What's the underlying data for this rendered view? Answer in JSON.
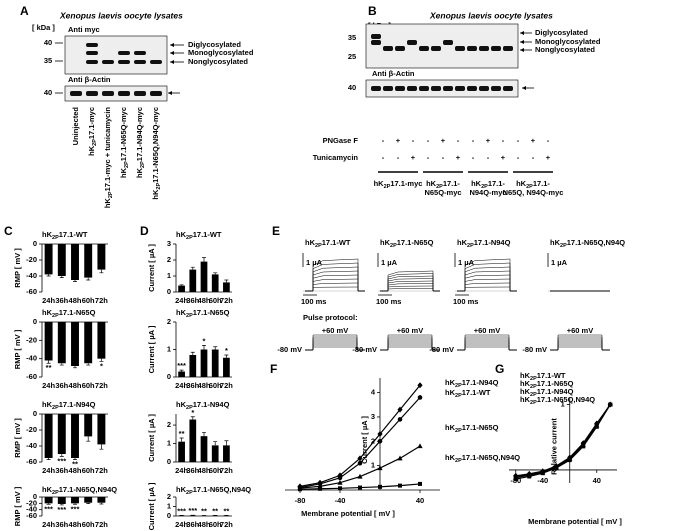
{
  "figure": {
    "A": {
      "label": "A",
      "title": "Xenopus laevis oocyte lysates",
      "kda": "[ kDa ]",
      "myc": "Anti myc",
      "myc_markers": [
        40,
        35
      ],
      "actin": "Anti β-Actin",
      "actin_marker": 40,
      "bands": [
        "Diglycosylated",
        "Monoglycosylated",
        "Nonglycosylated"
      ],
      "lanes": [
        "Uninjected",
        "hK2P17.1-myc",
        "hK2P17.1-myc + tunicamycin",
        "hK2P17.1-N65Q-myc",
        "hK2P17.1-N94Q-myc",
        "hK2P17.1-N65Q,N94Q-myc"
      ]
    },
    "B": {
      "label": "B",
      "title": "Xenopus laevis oocyte lysates",
      "kda": "[ kDa ]",
      "myc": "Anti myc",
      "myc_markers": [
        35,
        25
      ],
      "actin": "Anti β-Actin",
      "actin_marker": 40,
      "bands": [
        "Diglycosylated",
        "Monoglycosylated",
        "Nonglycosylated"
      ],
      "pngase_label": "PNGase F",
      "pngase": [
        "-",
        "+",
        "-",
        "-",
        "+",
        "-",
        "-",
        "+",
        "-",
        "-",
        "+",
        "-"
      ],
      "tunicamycin_label": "Tunicamycin",
      "tunicamycin": [
        "-",
        "-",
        "+",
        "-",
        "-",
        "+",
        "-",
        "-",
        "+",
        "-",
        "-",
        "+"
      ],
      "groups": [
        [
          "hK2P17.1-myc"
        ],
        [
          "hK2P17.1-",
          "N65Q-myc"
        ],
        [
          "hK2P17.1-",
          "N94Q-myc"
        ],
        [
          "hK2P17.1-",
          "N65Q, N94Q-myc"
        ]
      ]
    },
    "C": {
      "label": "C"
    },
    "D": {
      "label": "D"
    },
    "E": {
      "label": "E",
      "traces": [
        {
          "title": "hK2P17.1-WT",
          "current": "1 µA",
          "time": "100 ms"
        },
        {
          "title": "hK2P17.1-N65Q",
          "current": "1 µA",
          "time": "100 ms"
        },
        {
          "title": "hK2P17.1-N94Q",
          "current": "1 µA",
          "time": "100 ms"
        },
        {
          "title": "hK2P17.1-N65Q,N94Q",
          "current": "1 µA"
        }
      ],
      "protocol_label": "Pulse protocol:",
      "pulses": [
        {
          "top": "+60 mV",
          "bottom": "-80 mV"
        },
        {
          "top": "+60 mV",
          "bottom": "-80 mV"
        },
        {
          "top": "+60 mV",
          "bottom": "-80 mV"
        },
        {
          "top": "+60 mV",
          "bottom": "-80 mV"
        }
      ]
    },
    "F": {
      "label": "F"
    },
    "G": {
      "label": "G"
    }
  },
  "chart_data": [
    {
      "type": "bar",
      "title": "hK2P17.1-WT",
      "ylabel": "RMP [ mV ]",
      "categories": [
        "24h",
        "36h",
        "48h",
        "60h",
        "72h"
      ],
      "values": [
        -38,
        -40,
        -45,
        -42,
        -32
      ],
      "errors": [
        2,
        2,
        2,
        3,
        4
      ],
      "significance": [
        null,
        null,
        null,
        null,
        null
      ],
      "color": "#000000",
      "ylim": [
        -60,
        0
      ],
      "yticks": [
        -60,
        -40,
        -20,
        0
      ]
    },
    {
      "type": "bar",
      "title": "hK2P17.1-N65Q",
      "ylabel": "RMP [ mV ]",
      "categories": [
        "24h",
        "36h",
        "48h",
        "60h",
        "72h"
      ],
      "values": [
        -42,
        -45,
        -48,
        -45,
        -40
      ],
      "errors": [
        3,
        2,
        2,
        2,
        3
      ],
      "significance": [
        "**",
        null,
        null,
        null,
        "*"
      ],
      "color": "#000000",
      "ylim": [
        -60,
        0
      ],
      "yticks": [
        -60,
        -40,
        -20,
        0
      ]
    },
    {
      "type": "bar",
      "title": "hK2P17.1-N94Q",
      "ylabel": "RMP [ mV ]",
      "categories": [
        "24h",
        "36h",
        "48h",
        "60h",
        "72h"
      ],
      "values": [
        -55,
        -50,
        -55,
        -28,
        -38
      ],
      "errors": [
        2,
        3,
        2,
        6,
        6
      ],
      "significance": [
        null,
        "***",
        "**",
        null,
        null
      ],
      "color": "#000000",
      "ylim": [
        -60,
        0
      ],
      "yticks": [
        -60,
        -40,
        -20,
        0
      ]
    },
    {
      "type": "bar",
      "title": "hK2P17.1-N65Q,N94Q",
      "ylabel": "RMP [ mV ]",
      "categories": [
        "24h",
        "36h",
        "48h",
        "60h",
        "72h"
      ],
      "values": [
        -20,
        -22,
        -20,
        -18,
        -18
      ],
      "errors": [
        3,
        3,
        3,
        3,
        4
      ],
      "significance": [
        "***",
        "***",
        "***",
        null,
        null
      ],
      "color": "#000000",
      "ylim": [
        -60,
        0
      ],
      "yticks": [
        -60,
        -40,
        -20,
        0
      ]
    },
    {
      "type": "bar",
      "title": "hK2P17.1-WT",
      "ylabel": "Current [ µA ]",
      "categories": [
        "24h",
        "36h",
        "48h",
        "60h",
        "72h"
      ],
      "values": [
        0.4,
        1.4,
        1.9,
        1.1,
        0.6
      ],
      "errors": [
        0.05,
        0.15,
        0.25,
        0.1,
        0.15
      ],
      "significance": [
        null,
        null,
        null,
        null,
        null
      ],
      "color": "#000000",
      "ylim": [
        0,
        3
      ],
      "yticks": [
        0,
        1,
        2,
        3
      ]
    },
    {
      "type": "bar",
      "title": "hK2P17.1-N65Q",
      "ylabel": "Current [ µA ]",
      "categories": [
        "24h",
        "36h",
        "48h",
        "60h",
        "72h"
      ],
      "values": [
        0.2,
        0.8,
        1.0,
        1.0,
        0.7
      ],
      "errors": [
        0.05,
        0.1,
        0.15,
        0.1,
        0.1
      ],
      "significance": [
        "***",
        null,
        "*",
        null,
        "*"
      ],
      "color": "#000000",
      "ylim": [
        0,
        2
      ],
      "yticks": [
        0,
        1,
        2
      ]
    },
    {
      "type": "bar",
      "title": "hK2P17.1-N94Q",
      "ylabel": "Current [ µA ]",
      "categories": [
        "24h",
        "36h",
        "48h",
        "60h",
        "72h"
      ],
      "values": [
        1.1,
        2.3,
        1.4,
        0.9,
        0.9
      ],
      "errors": [
        0.2,
        0.15,
        0.2,
        0.2,
        0.25
      ],
      "significance": [
        "**",
        "*",
        null,
        null,
        null
      ],
      "color": "#000000",
      "ylim": [
        0,
        2.6
      ],
      "yticks": [
        0,
        1,
        2
      ]
    },
    {
      "type": "bar",
      "title": "hK2P17.1-N65Q,N94Q",
      "ylabel": "Current [ µA ]",
      "categories": [
        "24h",
        "36h",
        "48h",
        "60h",
        "72h"
      ],
      "values": [
        0.05,
        0.06,
        0.04,
        0.05,
        0.05
      ],
      "errors": [
        0.02,
        0.02,
        0.02,
        0.02,
        0.02
      ],
      "significance": [
        "***",
        "***",
        "**",
        "**",
        "**"
      ],
      "color": "#000000",
      "ylim": [
        0,
        2
      ],
      "yticks": [
        0,
        1,
        2
      ]
    },
    {
      "type": "line",
      "xlabel": "Membrane potential [ mV ]",
      "ylabel": "Current [ µA ]",
      "x": [
        -80,
        -60,
        -40,
        -20,
        0,
        20,
        40
      ],
      "xlim": [
        -95,
        60
      ],
      "xticks": [
        -80,
        -40,
        40
      ],
      "ylim": [
        0,
        4.6
      ],
      "yticks": [
        1,
        2,
        3,
        4
      ],
      "series": [
        {
          "name": "hK2P17.1-N94Q",
          "color": "#000000",
          "marker": "diamond",
          "values": [
            0.15,
            0.3,
            0.6,
            1.3,
            2.3,
            3.3,
            4.3
          ]
        },
        {
          "name": "hK2P17.1-WT",
          "color": "#000000",
          "marker": "circle",
          "values": [
            0.1,
            0.25,
            0.5,
            1.1,
            2.0,
            2.9,
            3.8
          ]
        },
        {
          "name": "hK2P17.1-N65Q",
          "color": "#000000",
          "marker": "triangle",
          "values": [
            0.08,
            0.15,
            0.3,
            0.55,
            0.9,
            1.3,
            1.8
          ]
        },
        {
          "name": "hK2P17.1-N65Q,N94Q",
          "color": "#000000",
          "marker": "square",
          "values": [
            0.03,
            0.05,
            0.07,
            0.1,
            0.13,
            0.18,
            0.25
          ]
        }
      ]
    },
    {
      "type": "line",
      "xlabel": "Membrane potential [ mV ]",
      "ylabel": "Relative current",
      "x": [
        -80,
        -60,
        -40,
        -20,
        0,
        20,
        40,
        60
      ],
      "xlim": [
        -90,
        70
      ],
      "xticks": [
        -80,
        -40,
        40
      ],
      "ylim": [
        -0.2,
        1.1
      ],
      "yticks": [
        1
      ],
      "series": [
        {
          "name": "hK2P17.1-WT",
          "color": "#000000",
          "marker": "circle",
          "values": [
            -0.1,
            -0.07,
            -0.03,
            0.05,
            0.18,
            0.4,
            0.7,
            1.0
          ]
        },
        {
          "name": "hK2P17.1-N65Q",
          "color": "#000000",
          "marker": "triangle",
          "values": [
            -0.12,
            -0.08,
            -0.04,
            0.04,
            0.17,
            0.38,
            0.68,
            1.0
          ]
        },
        {
          "name": "hK2P17.1-N94Q",
          "color": "#000000",
          "marker": "diamond",
          "values": [
            -0.09,
            -0.06,
            -0.02,
            0.06,
            0.19,
            0.41,
            0.71,
            1.0
          ]
        },
        {
          "name": "hK2P17.1-N65Q,N94Q",
          "color": "#000000",
          "marker": "square",
          "values": [
            -0.14,
            -0.1,
            -0.05,
            0.03,
            0.15,
            0.36,
            0.66,
            1.0
          ]
        }
      ]
    }
  ]
}
